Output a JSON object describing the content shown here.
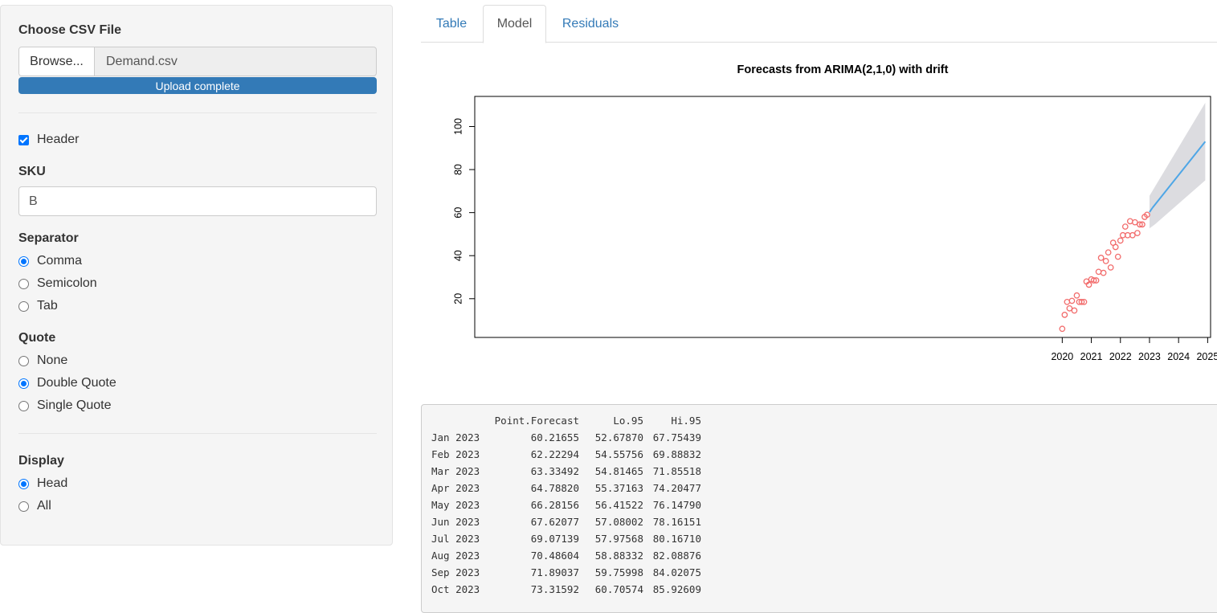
{
  "sidebar": {
    "file_label": "Choose CSV File",
    "browse_label": "Browse...",
    "file_name": "Demand.csv",
    "upload_status": "Upload complete",
    "header_label": "Header",
    "header_checked": true,
    "sku_label": "SKU",
    "sku_value": "B",
    "separator_label": "Separator",
    "separator_options": [
      "Comma",
      "Semicolon",
      "Tab"
    ],
    "separator_selected": "Comma",
    "quote_label": "Quote",
    "quote_options": [
      "None",
      "Double Quote",
      "Single Quote"
    ],
    "quote_selected": "Double Quote",
    "display_label": "Display",
    "display_options": [
      "Head",
      "All"
    ],
    "display_selected": "Head"
  },
  "tabs": {
    "items": [
      "Table",
      "Model",
      "Residuals"
    ],
    "active": "Model"
  },
  "chart_data": {
    "type": "line",
    "title": "Forecasts from ARIMA(2,1,0) with drift",
    "xlabel": "",
    "ylabel": "",
    "xlim": [
      1999.8,
      2025.1
    ],
    "xlim_note": "",
    "x_ticks": [
      "2020",
      "2021",
      "2022",
      "2023",
      "2024",
      "2025"
    ],
    "y_ticks": [
      "20",
      "40",
      "60",
      "80",
      "100"
    ],
    "ylim": [
      2,
      114
    ],
    "observed": {
      "x": [
        "2020-01",
        "2020-02",
        "2020-03",
        "2020-04",
        "2020-05",
        "2020-06",
        "2020-07",
        "2020-08",
        "2020-09",
        "2020-10",
        "2020-11",
        "2020-12",
        "2021-01",
        "2021-02",
        "2021-03",
        "2021-04",
        "2021-05",
        "2021-06",
        "2021-07",
        "2021-08",
        "2021-09",
        "2021-10",
        "2021-11",
        "2021-12",
        "2022-01",
        "2022-02",
        "2022-03",
        "2022-04",
        "2022-05",
        "2022-06",
        "2022-07",
        "2022-08",
        "2022-09",
        "2022-10",
        "2022-11",
        "2022-12"
      ],
      "values": [
        6,
        12.5,
        18.5,
        15.5,
        19,
        14.5,
        21.5,
        18.5,
        18.5,
        18.5,
        28,
        26.5,
        29,
        28.5,
        28.5,
        32.5,
        39,
        32,
        37.5,
        41.5,
        34.5,
        46,
        44,
        39.5,
        47,
        49.5,
        53.5,
        49.5,
        56,
        49.5,
        55.5,
        50.5,
        54.5,
        54.5,
        58,
        59
      ],
      "color": "#f26c6c"
    },
    "forecast": {
      "x_start": "2023-01",
      "x_end": "2024-12",
      "start_value": 60.2,
      "end_value": 93,
      "lo95_start": 52.7,
      "lo95_end": 75,
      "hi95_start": 67.8,
      "hi95_end": 111,
      "line_color": "#4ea6e6",
      "band_color": "#dcdce0"
    }
  },
  "forecast_table": {
    "headers": [
      "",
      "Point.Forecast",
      "Lo.95",
      "Hi.95"
    ],
    "rows": [
      [
        "Jan 2023",
        "60.21655",
        "52.67870",
        "67.75439"
      ],
      [
        "Feb 2023",
        "62.22294",
        "54.55756",
        "69.88832"
      ],
      [
        "Mar 2023",
        "63.33492",
        "54.81465",
        "71.85518"
      ],
      [
        "Apr 2023",
        "64.78820",
        "55.37163",
        "74.20477"
      ],
      [
        "May 2023",
        "66.28156",
        "56.41522",
        "76.14790"
      ],
      [
        "Jun 2023",
        "67.62077",
        "57.08002",
        "78.16151"
      ],
      [
        "Jul 2023",
        "69.07139",
        "57.97568",
        "80.16710"
      ],
      [
        "Aug 2023",
        "70.48604",
        "58.88332",
        "82.08876"
      ],
      [
        "Sep 2023",
        "71.89037",
        "59.75998",
        "84.02075"
      ],
      [
        "Oct 2023",
        "73.31592",
        "60.70574",
        "85.92609"
      ]
    ]
  }
}
